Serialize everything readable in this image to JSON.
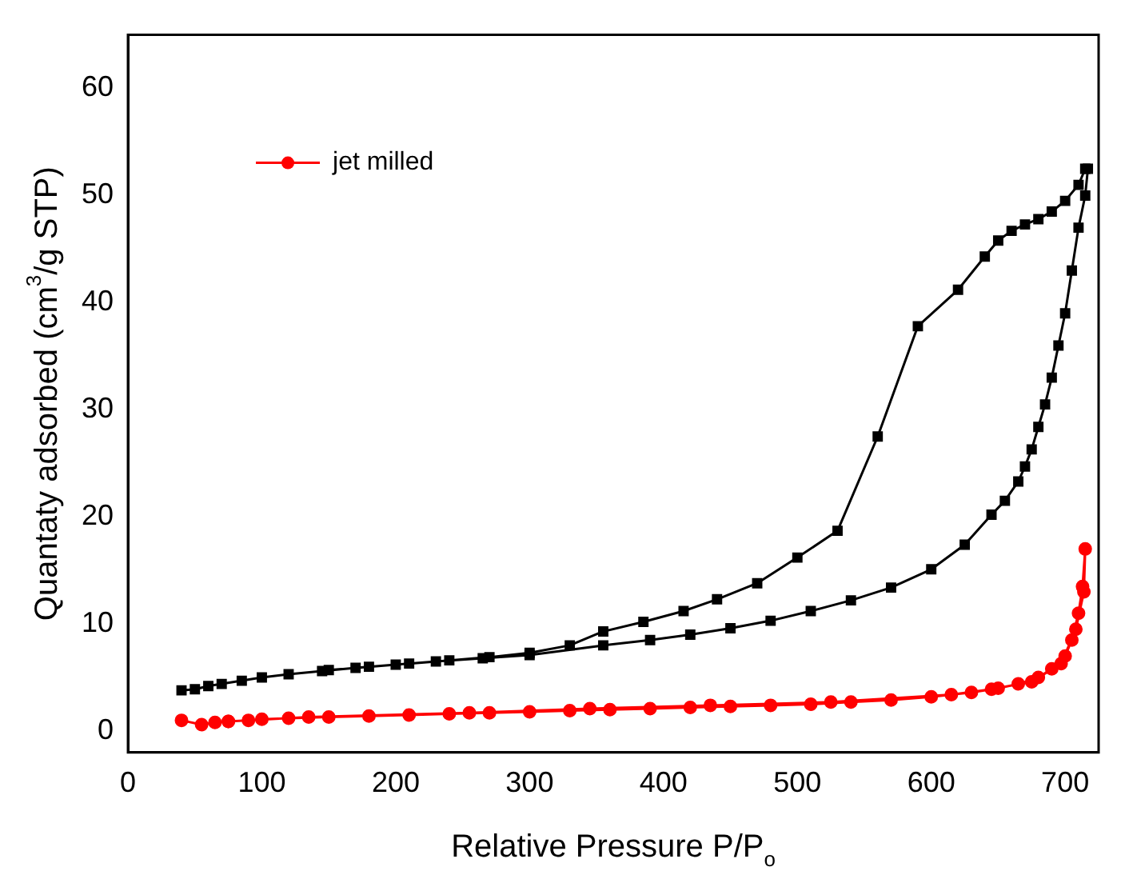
{
  "chart_data": {
    "type": "line",
    "xlabel": "Relative Pressure P/P$_{o}$",
    "ylabel": "Quantaty adsorbed (cm$^{3}$/g STP)",
    "xlim": [
      0,
      725
    ],
    "xticks": [
      0,
      100,
      200,
      300,
      400,
      500,
      600,
      700
    ],
    "ylim": [
      -2,
      65
    ],
    "yticks": [
      0,
      10,
      20,
      30,
      40,
      50,
      60
    ],
    "grid": false,
    "legend": "top left",
    "line_style": "solid",
    "series": [
      {
        "color": "#000000",
        "marker": "square",
        "x": [
          40,
          50,
          60,
          70,
          85,
          100,
          120,
          145,
          170,
          200,
          230,
          265,
          300,
          355,
          390,
          420,
          450,
          480,
          510,
          540,
          570,
          600,
          625,
          645,
          655,
          665,
          670,
          675,
          680,
          685,
          690,
          695,
          700,
          705,
          710,
          715,
          717,
          715,
          710,
          700,
          690,
          680,
          670,
          660,
          650,
          640,
          620,
          590,
          560,
          530,
          500,
          470,
          440,
          415,
          385,
          355,
          330,
          300,
          270,
          240,
          210,
          180,
          150
        ],
        "values": [
          3.8,
          3.9,
          4.2,
          4.4,
          4.7,
          5.0,
          5.3,
          5.6,
          5.9,
          6.2,
          6.5,
          6.8,
          7.1,
          8.0,
          8.5,
          9.0,
          9.6,
          10.3,
          11.2,
          12.2,
          13.4,
          15.1,
          17.4,
          20.2,
          21.5,
          23.3,
          24.7,
          26.3,
          28.4,
          30.5,
          33,
          36,
          39,
          43,
          47,
          50,
          52.5,
          52.5,
          51,
          49.5,
          48.5,
          47.8,
          47.3,
          46.7,
          45.8,
          44.3,
          41.2,
          37.8,
          27.5,
          18.7,
          16.2,
          13.8,
          12.3,
          11.2,
          10.2,
          9.3,
          8.0,
          7.3,
          6.9,
          6.6,
          6.3,
          6.0,
          5.7
        ]
      },
      {
        "name": "jet milled",
        "color": "#ff0000",
        "marker": "circle",
        "x": [
          40,
          55,
          65,
          75,
          90,
          100,
          120,
          150,
          180,
          210,
          240,
          270,
          300,
          330,
          360,
          390,
          420,
          450,
          480,
          510,
          540,
          570,
          600,
          630,
          650,
          665,
          680,
          690,
          700,
          705,
          710,
          713,
          715,
          714,
          708,
          697,
          675,
          645,
          615,
          525,
          435,
          345,
          255,
          135,
          75
        ],
        "values": [
          1.0,
          0.6,
          0.8,
          0.9,
          1.0,
          1.1,
          1.2,
          1.3,
          1.4,
          1.5,
          1.6,
          1.7,
          1.8,
          1.9,
          2.0,
          2.1,
          2.2,
          2.3,
          2.4,
          2.5,
          2.7,
          2.9,
          3.2,
          3.6,
          4.0,
          4.4,
          5.0,
          5.8,
          7.0,
          8.5,
          11,
          13.5,
          17,
          13,
          9.5,
          6.3,
          4.6,
          3.9,
          3.4,
          2.7,
          2.4,
          2.1,
          1.7,
          1.3,
          0.9
        ]
      }
    ]
  }
}
